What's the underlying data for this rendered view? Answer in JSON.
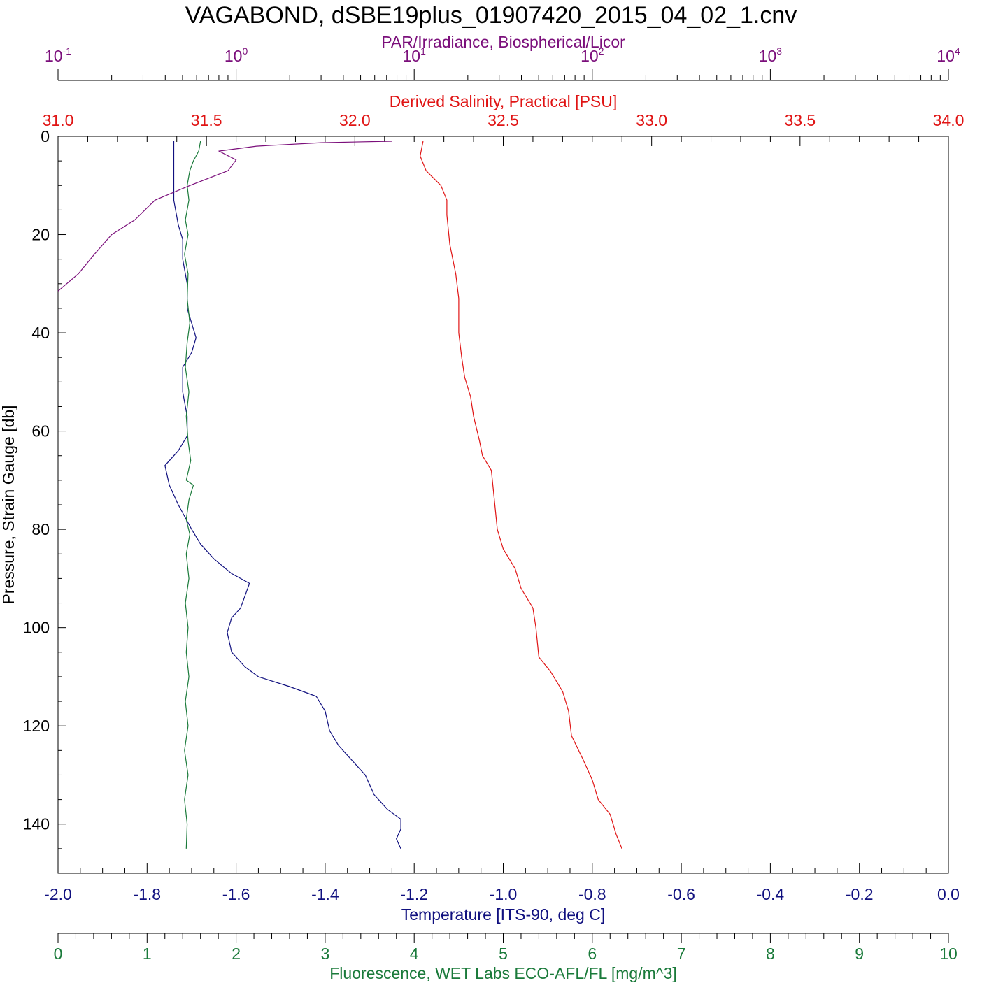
{
  "chart_data": {
    "type": "line",
    "title": "VAGABOND, dSBE19plus_01907420_2015_04_02_1.cnv",
    "colors": {
      "par": "#7b0f7b",
      "salinity": "#e01414",
      "temperature": "#10107f",
      "fluorescence": "#1a7a3a",
      "pressure": "#000000"
    },
    "axes": {
      "pressure": {
        "label": "Pressure, Strain Gauge [db]",
        "range": [
          0,
          150
        ],
        "reversed": true,
        "ticks": [
          0,
          20,
          40,
          60,
          80,
          100,
          120,
          140
        ],
        "tick_labels": [
          "0",
          "20",
          "40",
          "60",
          "80",
          "100",
          "120",
          "140"
        ]
      },
      "par": {
        "label": "PAR/Irradiance, Biospherical/Licor",
        "scale": "log",
        "range": [
          0.1,
          10000
        ],
        "tick_bases": [
          "10",
          "10",
          "10",
          "10",
          "10",
          "10"
        ],
        "tick_exponents": [
          "-1",
          "0",
          "1",
          "2",
          "3",
          "4"
        ]
      },
      "salinity": {
        "label": "Derived Salinity, Practical [PSU]",
        "range": [
          31.0,
          34.0
        ],
        "ticks": [
          31.0,
          31.5,
          32.0,
          32.5,
          33.0,
          33.5,
          34.0
        ],
        "tick_labels": [
          "31.0",
          "31.5",
          "32.0",
          "32.5",
          "33.0",
          "33.5",
          "34.0"
        ]
      },
      "temperature": {
        "label": "Temperature [ITS-90, deg C]",
        "range": [
          -2.0,
          0.0
        ],
        "ticks": [
          -2.0,
          -1.8,
          -1.6,
          -1.4,
          -1.2,
          -1.0,
          -0.8,
          -0.6,
          -0.4,
          -0.2,
          0.0
        ],
        "tick_labels": [
          "-2.0",
          "-1.8",
          "-1.6",
          "-1.4",
          "-1.2",
          "-1.0",
          "-0.8",
          "-0.6",
          "-0.4",
          "-0.2",
          "0.0"
        ]
      },
      "fluorescence": {
        "label": "Fluorescence, WET Labs ECO-AFL/FL [mg/m^3]",
        "range": [
          0,
          10
        ],
        "ticks": [
          0,
          1,
          2,
          3,
          4,
          5,
          6,
          7,
          8,
          9,
          10
        ],
        "tick_labels": [
          "0",
          "1",
          "2",
          "3",
          "4",
          "5",
          "6",
          "7",
          "8",
          "9",
          "10"
        ]
      }
    },
    "series": [
      {
        "axis": "temperature",
        "points": [
          [
            -1.74,
            1
          ],
          [
            -1.74,
            3
          ],
          [
            -1.74,
            8
          ],
          [
            -1.74,
            13
          ],
          [
            -1.73,
            18
          ],
          [
            -1.72,
            21
          ],
          [
            -1.72,
            25
          ],
          [
            -1.71,
            30
          ],
          [
            -1.71,
            35
          ],
          [
            -1.69,
            41
          ],
          [
            -1.7,
            44
          ],
          [
            -1.72,
            47
          ],
          [
            -1.72,
            52
          ],
          [
            -1.71,
            57
          ],
          [
            -1.71,
            61
          ],
          [
            -1.73,
            64
          ],
          [
            -1.76,
            67
          ],
          [
            -1.75,
            71
          ],
          [
            -1.73,
            75
          ],
          [
            -1.7,
            80
          ],
          [
            -1.68,
            83
          ],
          [
            -1.65,
            86
          ],
          [
            -1.61,
            89
          ],
          [
            -1.57,
            91
          ],
          [
            -1.59,
            96
          ],
          [
            -1.61,
            98
          ],
          [
            -1.62,
            101
          ],
          [
            -1.61,
            105
          ],
          [
            -1.58,
            108
          ],
          [
            -1.55,
            110
          ],
          [
            -1.48,
            112
          ],
          [
            -1.42,
            114
          ],
          [
            -1.4,
            117
          ],
          [
            -1.39,
            121
          ],
          [
            -1.37,
            124
          ],
          [
            -1.34,
            127
          ],
          [
            -1.31,
            130
          ],
          [
            -1.29,
            134
          ],
          [
            -1.26,
            137
          ],
          [
            -1.23,
            139
          ],
          [
            -1.23,
            141
          ],
          [
            -1.24,
            143
          ],
          [
            -1.23,
            145
          ]
        ]
      },
      {
        "axis": "fluorescence",
        "points": [
          [
            1.6,
            1
          ],
          [
            1.58,
            3
          ],
          [
            1.52,
            5
          ],
          [
            1.48,
            7
          ],
          [
            1.45,
            10
          ],
          [
            1.47,
            13
          ],
          [
            1.43,
            17
          ],
          [
            1.46,
            20
          ],
          [
            1.42,
            24
          ],
          [
            1.46,
            28
          ],
          [
            1.45,
            33
          ],
          [
            1.48,
            38
          ],
          [
            1.45,
            42
          ],
          [
            1.43,
            47
          ],
          [
            1.47,
            52
          ],
          [
            1.44,
            57
          ],
          [
            1.46,
            62
          ],
          [
            1.49,
            66
          ],
          [
            1.44,
            70
          ],
          [
            1.52,
            71
          ],
          [
            1.47,
            74
          ],
          [
            1.44,
            78
          ],
          [
            1.48,
            81
          ],
          [
            1.44,
            85
          ],
          [
            1.47,
            90
          ],
          [
            1.43,
            95
          ],
          [
            1.46,
            100
          ],
          [
            1.44,
            105
          ],
          [
            1.47,
            110
          ],
          [
            1.43,
            115
          ],
          [
            1.46,
            120
          ],
          [
            1.42,
            125
          ],
          [
            1.46,
            130
          ],
          [
            1.42,
            135
          ],
          [
            1.45,
            140
          ],
          [
            1.44,
            145
          ]
        ]
      },
      {
        "axis": "par",
        "points": [
          [
            7.5,
            1
          ],
          [
            3.0,
            1.3
          ],
          [
            1.3,
            2
          ],
          [
            0.8,
            3
          ],
          [
            1.0,
            4.8
          ],
          [
            0.9,
            7
          ],
          [
            0.55,
            10
          ],
          [
            0.35,
            13
          ],
          [
            0.27,
            17
          ],
          [
            0.2,
            20
          ],
          [
            0.16,
            24
          ],
          [
            0.13,
            28
          ],
          [
            0.1,
            31.5
          ]
        ]
      },
      {
        "axis": "salinity",
        "points": [
          [
            32.23,
            1
          ],
          [
            32.22,
            4
          ],
          [
            32.24,
            7
          ],
          [
            32.29,
            10
          ],
          [
            32.31,
            13
          ],
          [
            32.31,
            16
          ],
          [
            32.32,
            22
          ],
          [
            32.34,
            28
          ],
          [
            32.35,
            33
          ],
          [
            32.35,
            40
          ],
          [
            32.36,
            45
          ],
          [
            32.37,
            49
          ],
          [
            32.39,
            53
          ],
          [
            32.4,
            57
          ],
          [
            32.42,
            62
          ],
          [
            32.43,
            65
          ],
          [
            32.46,
            68
          ],
          [
            32.47,
            74
          ],
          [
            32.48,
            80
          ],
          [
            32.5,
            84
          ],
          [
            32.54,
            88
          ],
          [
            32.56,
            92
          ],
          [
            32.6,
            96
          ],
          [
            32.61,
            100
          ],
          [
            32.62,
            106
          ],
          [
            32.66,
            109
          ],
          [
            32.7,
            113
          ],
          [
            32.72,
            117
          ],
          [
            32.73,
            122
          ],
          [
            32.77,
            127
          ],
          [
            32.8,
            131
          ],
          [
            32.82,
            135
          ],
          [
            32.86,
            138
          ],
          [
            32.88,
            142
          ],
          [
            32.9,
            145
          ]
        ]
      }
    ]
  }
}
